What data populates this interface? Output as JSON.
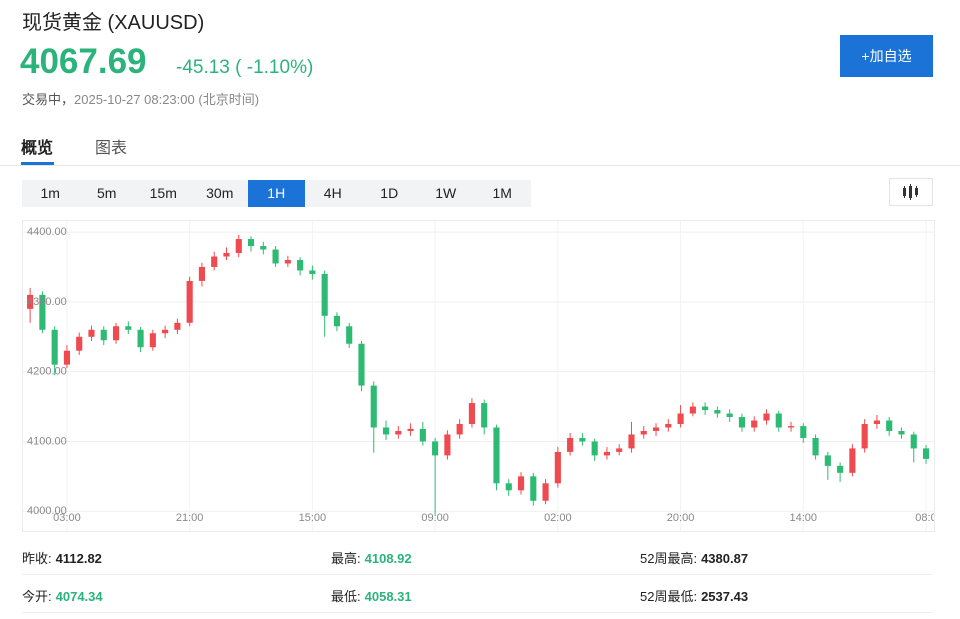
{
  "header": {
    "title": "现货黄金 (XAUUSD)",
    "price": "4067.69",
    "change": "-45.13 ( -1.10%)",
    "status": "交易中，",
    "time": "2025-10-27 08:23:00",
    "timezone": "(北京时间)",
    "button": "+加自选"
  },
  "tabs": [
    "概览",
    "图表"
  ],
  "intervals": [
    "1m",
    "5m",
    "15m",
    "30m",
    "1H",
    "4H",
    "1D",
    "1W",
    "1M"
  ],
  "active_interval": 4,
  "stats": [
    [
      {
        "label": "昨收:",
        "value": "4112.82"
      },
      {
        "label": "最高:",
        "value": "4108.92"
      },
      {
        "label": "52周最高:",
        "value": "4380.87"
      }
    ],
    [
      {
        "label": "今开:",
        "value": "4074.34"
      },
      {
        "label": "最低:",
        "value": "4058.31"
      },
      {
        "label": "52周最低:",
        "value": "2537.43"
      }
    ]
  ],
  "chart_data": {
    "type": "candlestick",
    "up_color": "#ee4a4f",
    "down_color": "#2dbb73",
    "grid": true,
    "ylim": [
      3986,
      4413
    ],
    "yticks": [
      {
        "value": 4000,
        "label": "4000.00"
      },
      {
        "value": 4100,
        "label": "4100.00"
      },
      {
        "value": 4200,
        "label": "4200.00"
      },
      {
        "value": 4300,
        "label": "4300.00"
      },
      {
        "value": 4400,
        "label": "4400.00"
      }
    ],
    "xlim": [
      -0.58,
      73.65
    ],
    "xticks": [
      {
        "value": 3,
        "label": "03:00"
      },
      {
        "value": 13,
        "label": "21:00"
      },
      {
        "value": 23,
        "label": "15:00"
      },
      {
        "value": 33,
        "label": "09:00"
      },
      {
        "value": 43,
        "label": "02:00"
      },
      {
        "value": 53,
        "label": "20:00"
      },
      {
        "value": 63,
        "label": "14:00"
      },
      {
        "value": 73,
        "label": "08:0"
      }
    ],
    "open": [
      4290,
      4310,
      4260,
      4210,
      4230,
      4250,
      4260,
      4245,
      4265,
      4260,
      4235,
      4255,
      4260,
      4270,
      4330,
      4350,
      4365,
      4370,
      4390,
      4380,
      4375,
      4355,
      4360,
      4345,
      4340,
      4280,
      4265,
      4240,
      4180,
      4120,
      4110,
      4115,
      4118,
      4100,
      4080,
      4110,
      4125,
      4155,
      4120,
      4040,
      4030,
      4050,
      4015,
      4040,
      4085,
      4105,
      4100,
      4080,
      4085,
      4090,
      4110,
      4115,
      4120,
      4125,
      4140,
      4150,
      4145,
      4140,
      4135,
      4120,
      4130,
      4140,
      4120,
      4122,
      4105,
      4080,
      4065,
      4055,
      4090,
      4125,
      4130,
      4115,
      4110,
      4090
    ],
    "high": [
      4320,
      4315,
      4265,
      4238,
      4256,
      4266,
      4265,
      4270,
      4272,
      4264,
      4260,
      4266,
      4276,
      4336,
      4356,
      4372,
      4378,
      4396,
      4394,
      4386,
      4380,
      4366,
      4364,
      4352,
      4345,
      4285,
      4270,
      4244,
      4186,
      4130,
      4122,
      4126,
      4128,
      4105,
      4116,
      4132,
      4162,
      4160,
      4124,
      4046,
      4056,
      4055,
      4046,
      4092,
      4112,
      4112,
      4104,
      4092,
      4096,
      4128,
      4122,
      4126,
      4132,
      4152,
      4156,
      4156,
      4150,
      4146,
      4140,
      4136,
      4146,
      4144,
      4128,
      4126,
      4110,
      4085,
      4070,
      4096,
      4132,
      4138,
      4135,
      4120,
      4114,
      4095
    ],
    "low": [
      4270,
      4255,
      4195,
      4205,
      4224,
      4244,
      4238,
      4240,
      4254,
      4228,
      4230,
      4248,
      4254,
      4265,
      4322,
      4345,
      4360,
      4364,
      4372,
      4368,
      4350,
      4350,
      4338,
      4332,
      4250,
      4258,
      4234,
      4172,
      4084,
      4102,
      4104,
      4108,
      4094,
      3995,
      4074,
      4104,
      4120,
      4110,
      4030,
      4022,
      4024,
      4008,
      4010,
      4034,
      4080,
      4094,
      4072,
      4074,
      4080,
      4084,
      4104,
      4108,
      4114,
      4120,
      4136,
      4138,
      4134,
      4128,
      4114,
      4114,
      4124,
      4114,
      4114,
      4098,
      4074,
      4045,
      4042,
      4050,
      4084,
      4118,
      4108,
      4104,
      4070,
      4068
    ],
    "close": [
      4310,
      4260,
      4210,
      4230,
      4250,
      4260,
      4245,
      4265,
      4260,
      4235,
      4255,
      4260,
      4270,
      4330,
      4350,
      4365,
      4370,
      4390,
      4380,
      4375,
      4355,
      4360,
      4345,
      4340,
      4280,
      4265,
      4240,
      4180,
      4120,
      4110,
      4115,
      4118,
      4100,
      4080,
      4110,
      4125,
      4155,
      4120,
      4040,
      4030,
      4050,
      4015,
      4040,
      4085,
      4105,
      4100,
      4080,
      4085,
      4090,
      4110,
      4115,
      4120,
      4125,
      4140,
      4150,
      4145,
      4140,
      4135,
      4120,
      4130,
      4140,
      4120,
      4122,
      4105,
      4080,
      4065,
      4055,
      4090,
      4125,
      4130,
      4115,
      4110,
      4090,
      4075
    ]
  }
}
